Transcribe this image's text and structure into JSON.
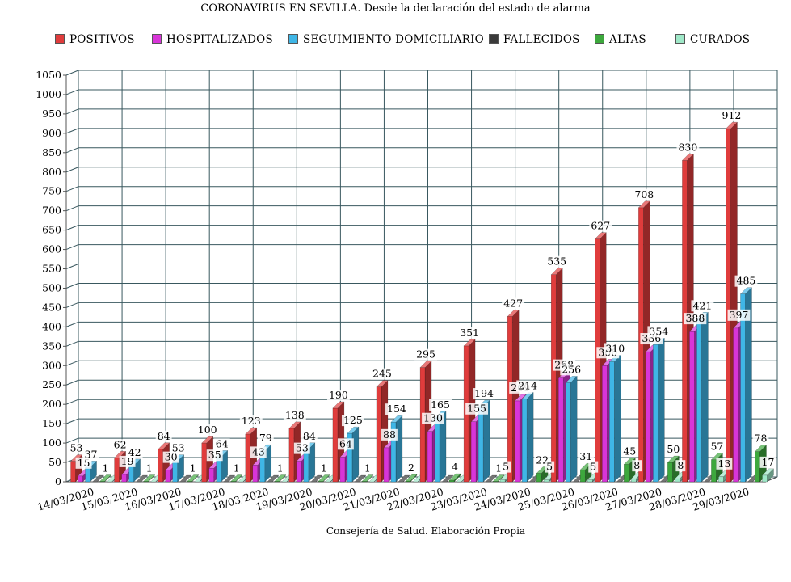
{
  "title": "CORONAVIRUS EN SEVILLA. Desde la declaración del estado de alarma",
  "source": "Consejería de Salud. Elaboración Propia",
  "chart_data": {
    "type": "bar",
    "title": "CORONAVIRUS EN SEVILLA. Desde la declaración del estado de alarma",
    "xlabel": "",
    "ylabel": "",
    "ylim": [
      0,
      1050
    ],
    "yticks": [
      0,
      50,
      100,
      150,
      200,
      250,
      300,
      350,
      400,
      450,
      500,
      550,
      600,
      650,
      700,
      750,
      800,
      850,
      900,
      950,
      1000,
      1050
    ],
    "grid": true,
    "legend_position": "top",
    "categories": [
      "14/03/2020",
      "15/03/2020",
      "16/03/2020",
      "17/03/2020",
      "18/03/2020",
      "19/03/2020",
      "20/03/2020",
      "21/03/2020",
      "22/03/2020",
      "23/03/2020",
      "24/03/2020",
      "25/03/2020",
      "26/03/2020",
      "27/03/2020",
      "28/03/2020",
      "29/03/2020"
    ],
    "series": [
      {
        "name": "POSITIVOS",
        "color": "#e03c3c",
        "values": [
          53,
          62,
          84,
          100,
          123,
          138,
          190,
          245,
          295,
          351,
          427,
          535,
          627,
          708,
          830,
          912
        ]
      },
      {
        "name": "HOSPITALIZADOS",
        "color": "#d835d8",
        "values": [
          15,
          19,
          30,
          35,
          43,
          53,
          64,
          88,
          130,
          155,
          209,
          268,
          300,
          336,
          388,
          397
        ]
      },
      {
        "name": "SEGUIMIENTO DOMICILIARIO",
        "color": "#3fb6e6",
        "values": [
          37,
          42,
          53,
          64,
          79,
          84,
          125,
          154,
          165,
          194,
          214,
          256,
          310,
          354,
          421,
          485
        ]
      },
      {
        "name": "FALLECIDOS",
        "color": "#3a3a3a",
        "values": [
          0,
          0,
          0,
          0,
          0,
          0,
          0,
          0,
          0,
          0,
          0,
          0,
          0,
          0,
          0,
          0
        ]
      },
      {
        "name": "ALTAS",
        "color": "#3da83d",
        "values": [
          1,
          1,
          1,
          1,
          1,
          1,
          1,
          2,
          4,
          1,
          22,
          31,
          45,
          50,
          57,
          78
        ]
      },
      {
        "name": "CURADOS",
        "color": "#9fe8c8",
        "values": [
          0,
          0,
          0,
          0,
          0,
          0,
          0,
          0,
          0,
          5,
          5,
          5,
          8,
          8,
          13,
          17
        ]
      }
    ]
  }
}
